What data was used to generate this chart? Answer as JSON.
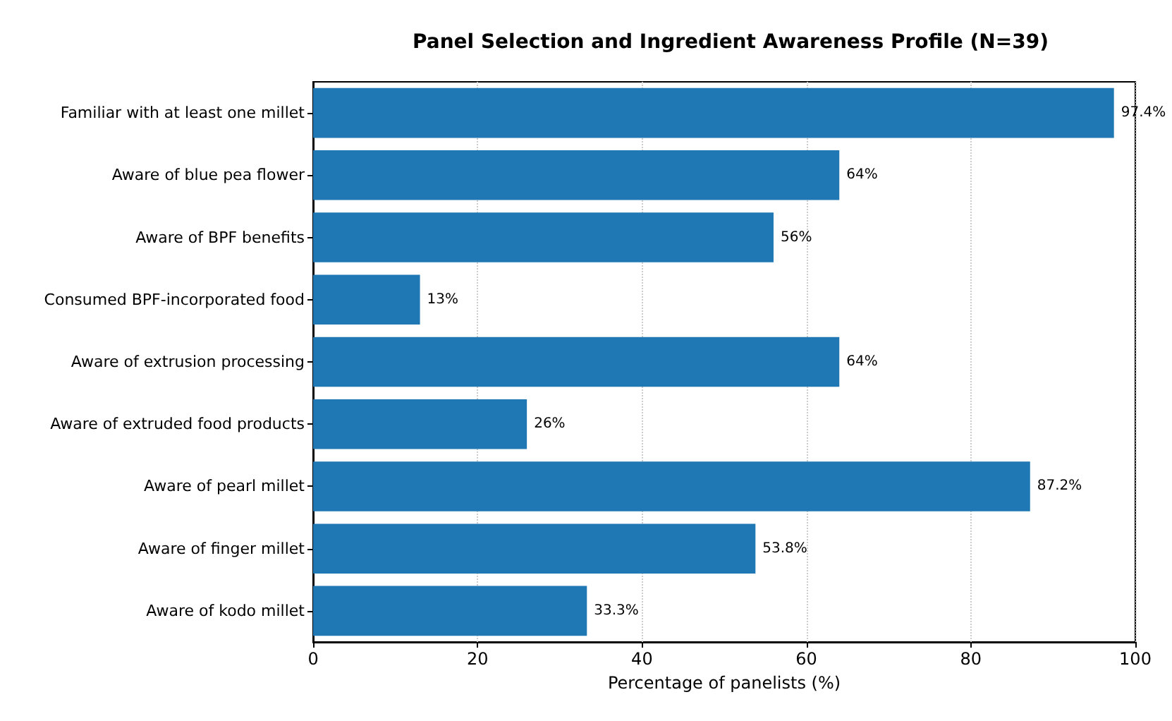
{
  "chart_data": {
    "type": "bar",
    "orientation": "horizontal",
    "title": "Panel Selection and Ingredient Awareness Profile (N=39)",
    "xlabel": "Percentage of panelists (%)",
    "categories": [
      "Familiar with at least one millet",
      "Aware of blue pea flower",
      "Aware of BPF benefits",
      "Consumed BPF-incorporated food",
      "Aware of extrusion processing",
      "Aware of extruded food products",
      "Aware of pearl millet",
      "Aware of finger millet",
      "Aware of kodo millet"
    ],
    "values": [
      97.4,
      64,
      56,
      13,
      64,
      26,
      87.2,
      53.8,
      33.3
    ],
    "value_labels": [
      "97.4%",
      "64%",
      "56%",
      "13%",
      "64%",
      "26%",
      "87.2%",
      "53.8%",
      "33.3%"
    ],
    "color": "#1f77b4",
    "xlim": [
      0,
      100
    ],
    "xticks": [
      0,
      20,
      40,
      60,
      80,
      100
    ],
    "grid": "x"
  }
}
